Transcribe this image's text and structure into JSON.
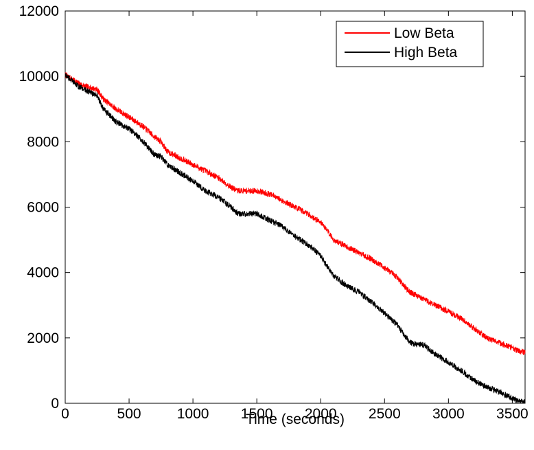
{
  "chart_data": {
    "type": "line",
    "title": "",
    "xlabel": "Time (seconds)",
    "ylabel": "",
    "xlim": [
      0,
      3600
    ],
    "ylim": [
      0,
      12000
    ],
    "x_ticks": [
      0,
      500,
      1000,
      1500,
      2000,
      2500,
      3000,
      3500
    ],
    "y_ticks": [
      0,
      2000,
      4000,
      6000,
      8000,
      10000,
      12000
    ],
    "x_tick_labels": [
      "0",
      "500",
      "1000",
      "1500",
      "2000",
      "2500",
      "3000",
      "3500"
    ],
    "y_tick_labels": [
      "0",
      "2000",
      "4000",
      "6000",
      "8000",
      "10000",
      "12000"
    ],
    "grid": false,
    "legend_position": "top-right",
    "series": [
      {
        "name": "Low Beta",
        "color": "#ff0000",
        "noise_amplitude": 90,
        "x": [
          0,
          100,
          150,
          200,
          250,
          300,
          400,
          500,
          600,
          700,
          750,
          800,
          900,
          1000,
          1100,
          1200,
          1300,
          1350,
          1400,
          1500,
          1600,
          1700,
          1800,
          1900,
          1950,
          2000,
          2050,
          2100,
          2200,
          2300,
          2400,
          2500,
          2600,
          2650,
          2700,
          2800,
          2900,
          3000,
          3100,
          3200,
          3300,
          3400,
          3500,
          3550,
          3600
        ],
        "y": [
          10050,
          9800,
          9700,
          9650,
          9600,
          9300,
          9000,
          8750,
          8500,
          8150,
          8000,
          7700,
          7500,
          7300,
          7100,
          6900,
          6600,
          6500,
          6500,
          6500,
          6400,
          6200,
          6000,
          5800,
          5650,
          5550,
          5300,
          5000,
          4800,
          4600,
          4400,
          4150,
          3850,
          3600,
          3400,
          3200,
          3000,
          2800,
          2600,
          2300,
          2000,
          1850,
          1700,
          1600,
          1550
        ]
      },
      {
        "name": "High Beta",
        "color": "#000000",
        "noise_amplitude": 90,
        "x": [
          0,
          100,
          150,
          200,
          250,
          300,
          400,
          500,
          600,
          700,
          750,
          800,
          900,
          1000,
          1100,
          1200,
          1300,
          1350,
          1400,
          1500,
          1600,
          1700,
          1800,
          1900,
          1950,
          2000,
          2050,
          2100,
          2200,
          2300,
          2400,
          2500,
          2600,
          2650,
          2700,
          2750,
          2800,
          2900,
          3000,
          3100,
          3200,
          3300,
          3400,
          3500,
          3550,
          3600
        ],
        "y": [
          10050,
          9700,
          9600,
          9500,
          9400,
          9000,
          8600,
          8400,
          8050,
          7600,
          7550,
          7300,
          7050,
          6800,
          6500,
          6300,
          6000,
          5800,
          5800,
          5800,
          5600,
          5400,
          5100,
          4850,
          4700,
          4500,
          4200,
          3900,
          3600,
          3400,
          3100,
          2750,
          2400,
          2100,
          1850,
          1800,
          1800,
          1500,
          1250,
          1000,
          700,
          500,
          350,
          150,
          50,
          50
        ]
      }
    ]
  }
}
